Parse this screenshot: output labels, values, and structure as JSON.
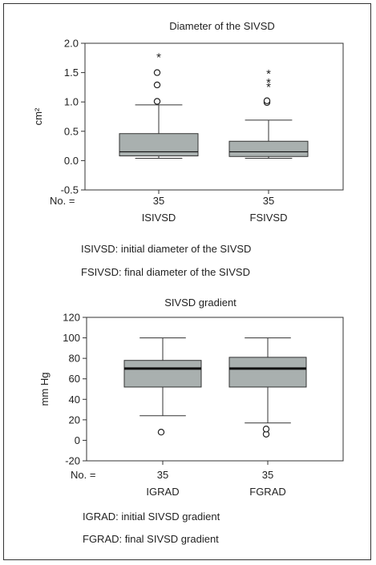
{
  "chart_data": [
    {
      "type": "box",
      "title": "Diameter of the SIVSD",
      "ylabel": "cm²",
      "ylim": [
        -0.5,
        2.0
      ],
      "yticks": [
        "-0.5",
        "0.0",
        "0.5",
        "1.0",
        "1.5",
        "2.0"
      ],
      "n_label": "No. =",
      "grid": false,
      "box_color": "#a9b0af",
      "categories": [
        "ISIVSD",
        "FSIVSD"
      ],
      "counts": [
        "35",
        "35"
      ],
      "boxes": [
        {
          "name": "ISIVSD",
          "whisker_low": 0.04,
          "q1": 0.08,
          "median": 0.15,
          "q3": 0.46,
          "whisker_high": 0.95,
          "outliers_circle": [
            1.01,
            1.29,
            1.5
          ],
          "outliers_star": [
            1.79
          ]
        },
        {
          "name": "FSIVSD",
          "whisker_low": 0.04,
          "q1": 0.07,
          "median": 0.15,
          "q3": 0.33,
          "whisker_high": 0.69,
          "outliers_circle": [
            0.99,
            1.02
          ],
          "outliers_star": [
            1.28,
            1.36,
            1.51
          ]
        }
      ]
    },
    {
      "type": "box",
      "title": "SIVSD gradient",
      "ylabel": "mm Hg",
      "ylim": [
        -20,
        120
      ],
      "yticks": [
        "-20",
        "0",
        "20",
        "40",
        "60",
        "80",
        "100",
        "120"
      ],
      "n_label": "No. =",
      "grid": false,
      "box_color": "#a9b0af",
      "categories": [
        "IGRAD",
        "FGRAD"
      ],
      "counts": [
        "35",
        "35"
      ],
      "boxes": [
        {
          "name": "IGRAD",
          "whisker_low": 24,
          "q1": 52,
          "median": 70,
          "q3": 78,
          "whisker_high": 100,
          "outliers_circle": [
            8
          ],
          "outliers_star": []
        },
        {
          "name": "FGRAD",
          "whisker_low": 17,
          "q1": 52,
          "median": 70,
          "q3": 81,
          "whisker_high": 100,
          "outliers_circle": [
            6,
            11
          ],
          "outliers_star": []
        }
      ]
    }
  ],
  "captions": {
    "chart1_line1": "ISIVSD: initial diameter of the SIVSD",
    "chart1_line2": "FSIVSD: final diameter of the SIVSD",
    "chart2_line1": "IGRAD: initial SIVSD gradient",
    "chart2_line2": "FGRAD: final SIVSD gradient"
  }
}
